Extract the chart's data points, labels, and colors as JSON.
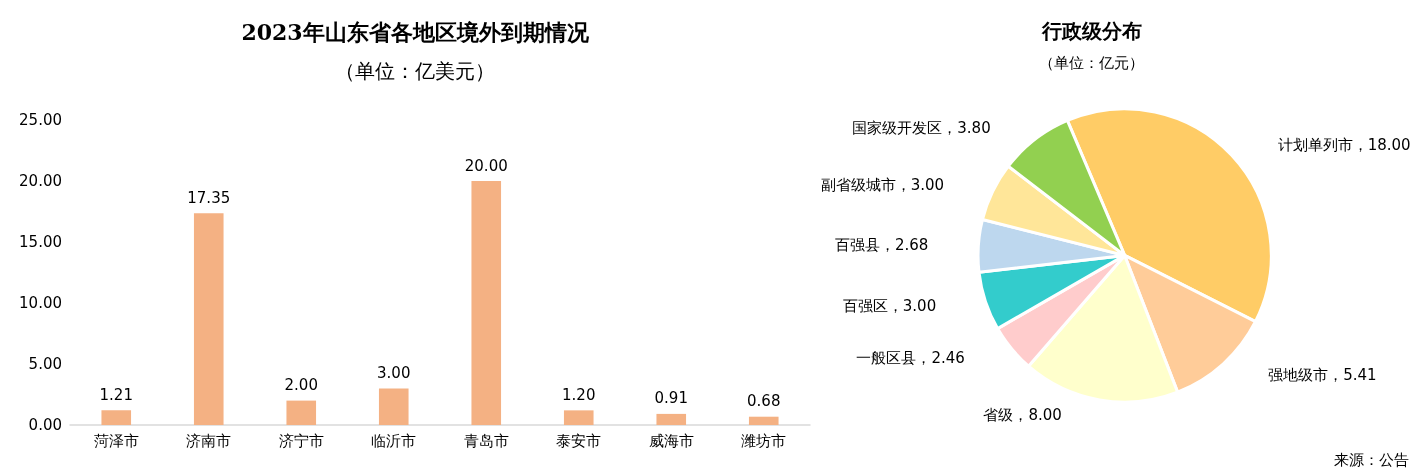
{
  "chart_data": [
    {
      "type": "bar",
      "title": "2023年山东省各地区境外到期情况",
      "subtitle": "（单位：亿美元）",
      "categories": [
        "菏泽市",
        "济南市",
        "济宁市",
        "临沂市",
        "青岛市",
        "泰安市",
        "威海市",
        "潍坊市"
      ],
      "values": [
        1.21,
        17.35,
        2.0,
        3.0,
        20.0,
        1.2,
        0.91,
        0.68
      ],
      "value_labels": [
        "1.21",
        "17.35",
        "2.00",
        "3.00",
        "20.00",
        "1.20",
        "0.91",
        "0.68"
      ],
      "color": "#f4b183",
      "ylim": [
        0,
        25
      ],
      "yticks": [
        {
          "value": 0,
          "label": "0.00"
        },
        {
          "value": 5,
          "label": "5.00"
        },
        {
          "value": 10,
          "label": "10.00"
        },
        {
          "value": 15,
          "label": "15.00"
        },
        {
          "value": 20,
          "label": "20.00"
        },
        {
          "value": 25,
          "label": "25.00"
        }
      ],
      "grid": false,
      "legend": false
    },
    {
      "type": "pie",
      "title": "行政级分布",
      "subtitle": "（单位：亿元）",
      "categories": [
        "计划单列市",
        "强地级市",
        "省级",
        "一般区县",
        "百强区",
        "百强县",
        "副省级城市",
        "国家级开发区"
      ],
      "values": [
        18.0,
        5.41,
        8.0,
        2.46,
        3.0,
        2.68,
        3.0,
        3.8
      ],
      "value_labels": [
        "18.00",
        "5.41",
        "8.00",
        "2.46",
        "3.00",
        "2.68",
        "3.00",
        "3.80"
      ],
      "colors": [
        "#ffcc66",
        "#ffcc99",
        "#ffffcc",
        "#ffcccc",
        "#33cccc",
        "#bdd7ee",
        "#ffe699",
        "#92d050"
      ],
      "legend": false,
      "annotations": [
        "来源：公告"
      ]
    }
  ]
}
